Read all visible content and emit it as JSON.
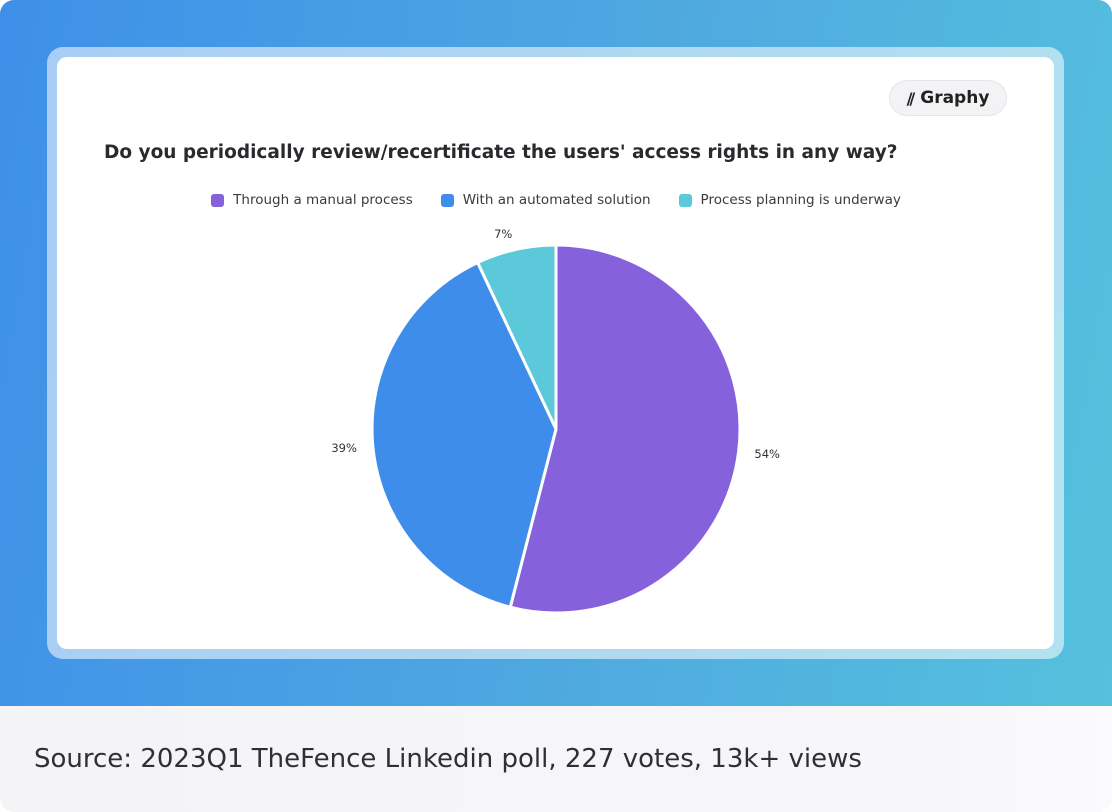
{
  "brand": {
    "logo_mark": "//",
    "name": "Graphy"
  },
  "footer": {
    "source_text": "Source: 2023Q1 TheFence Linkedin poll, 227 votes, 13k+ views"
  },
  "colors": {
    "purple": "#8661dc",
    "blue": "#3f8dea",
    "teal": "#5bc9da"
  },
  "chart_data": {
    "type": "pie",
    "title": "Do you periodically review/recertificate the users' access rights in any way?",
    "legend_position": "top-center",
    "categories": [
      "Through a manual process",
      "With an automated solution",
      "Process planning is underway"
    ],
    "values": [
      54,
      39,
      7
    ],
    "labels": [
      "54%",
      "39%",
      "7%"
    ],
    "colors": [
      "#8661dc",
      "#3f8dea",
      "#5bc9da"
    ]
  }
}
